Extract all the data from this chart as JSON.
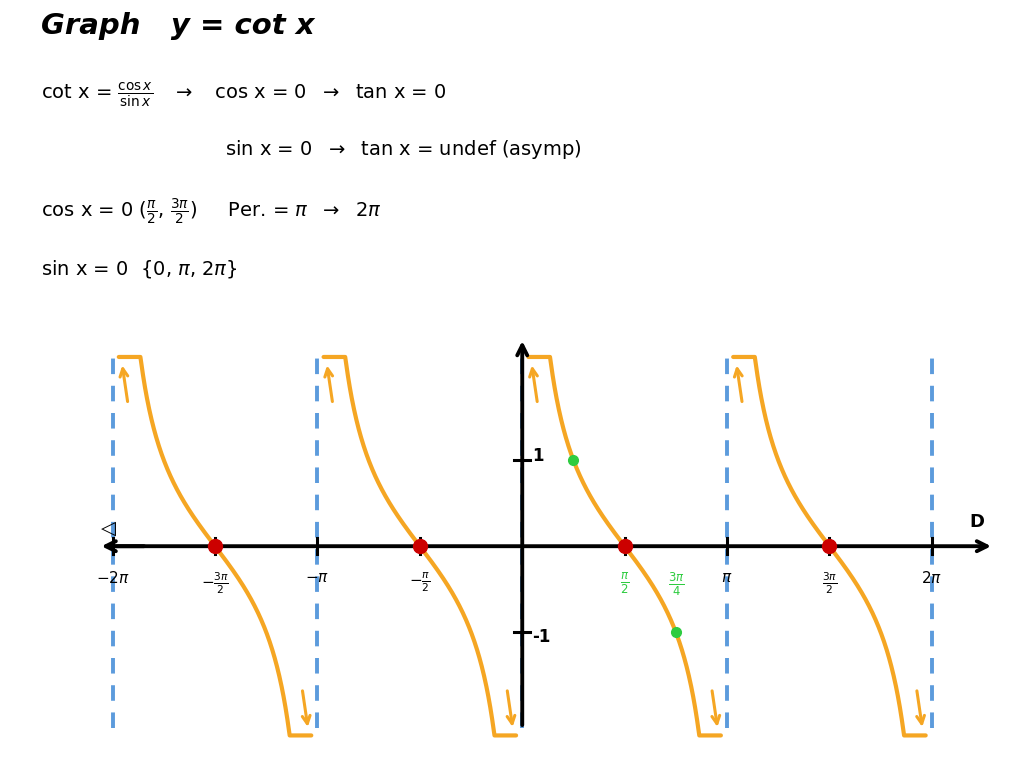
{
  "bg_color": "#ffffff",
  "axis_color": "#111111",
  "cot_color": "#f5a623",
  "asymptote_color": "#4a90d9",
  "red_dot_color": "#cc0000",
  "green_color": "#2ecc40",
  "xlim_pi": [
    -2.35,
    2.35
  ],
  "ylim": [
    -2.4,
    2.6
  ],
  "asymptotes_pi": [
    -2,
    -1,
    0,
    1,
    2
  ],
  "periods": [
    [
      -2.0,
      -1.0
    ],
    [
      -1.0,
      0.0
    ],
    [
      0.0,
      1.0
    ],
    [
      1.0,
      2.0
    ]
  ],
  "red_dots_pi": [
    -1.5,
    -0.5,
    0.5,
    1.5
  ],
  "green_dot1": [
    0.25,
    1.0
  ],
  "green_dot2": [
    0.75,
    -1.0
  ],
  "y_tick_vals": [
    1,
    -1
  ],
  "x_tick_pis": [
    -2,
    -1.5,
    -1,
    -0.5,
    0.5,
    1,
    1.5,
    2
  ],
  "clip_y": 2.2,
  "curve_lw": 3.0,
  "axis_lw": 2.8
}
